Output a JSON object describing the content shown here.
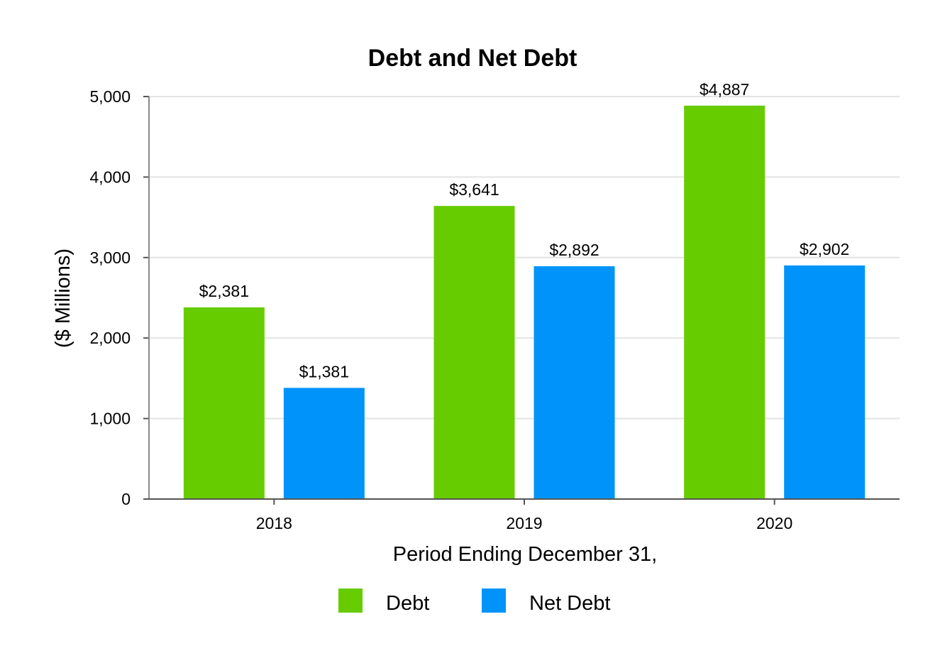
{
  "chart_data": {
    "type": "bar",
    "title": "Debt and Net Debt",
    "xlabel": "Period Ending December 31,",
    "ylabel": "($ Millions)",
    "categories": [
      "2018",
      "2019",
      "2020"
    ],
    "series": [
      {
        "name": "Debt",
        "color": "#66cc00",
        "values": [
          2381,
          3641,
          4887
        ],
        "labels": [
          "$2,381",
          "$3,641",
          "$4,887"
        ]
      },
      {
        "name": "Net Debt",
        "color": "#0094fa",
        "values": [
          1381,
          2892,
          2902
        ],
        "labels": [
          "$1,381",
          "$2,892",
          "$2,902"
        ]
      }
    ],
    "ylim": [
      0,
      5000
    ],
    "yticks": [
      0,
      1000,
      2000,
      3000,
      4000,
      5000
    ],
    "ytick_labels": [
      "0",
      "1,000",
      "2,000",
      "3,000",
      "4,000",
      "5,000"
    ],
    "grid": true,
    "legend_position": "bottom"
  }
}
